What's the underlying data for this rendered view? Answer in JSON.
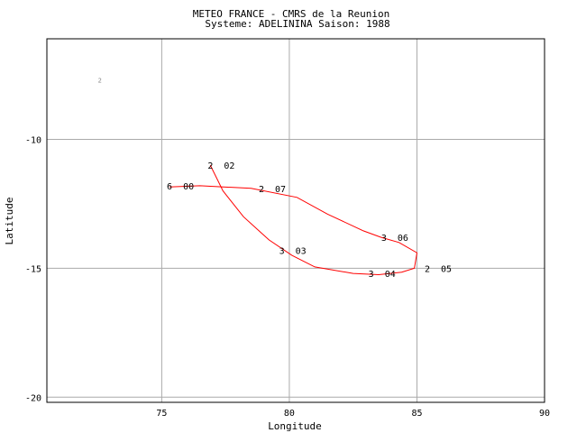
{
  "chart_data": {
    "type": "line",
    "title": "METEO FRANCE - CMRS de la Reunion",
    "subtitle": "Systeme: ADELININA  Saison: 1988",
    "xlabel": "Longitude",
    "ylabel": "Latitude",
    "xlim": [
      70.5,
      90
    ],
    "ylim": [
      -20.2,
      -6.1
    ],
    "xticks": [
      75,
      80,
      85,
      90
    ],
    "yticks": [
      -10,
      -15,
      -20
    ],
    "grid": true,
    "line_color": "#ff0000",
    "series": [
      {
        "x": [
          76.9,
          77.4,
          78.2,
          79.2,
          80.1,
          81.0,
          82.5,
          83.5,
          84.4,
          84.9,
          85.0,
          84.3,
          83.6,
          82.9,
          81.5,
          80.3,
          78.5,
          76.5,
          75.3
        ],
        "y": [
          -11.0,
          -12.0,
          -13.0,
          -13.9,
          -14.5,
          -14.95,
          -15.2,
          -15.25,
          -15.15,
          -15.0,
          -14.4,
          -14.0,
          -13.8,
          -13.55,
          -12.9,
          -12.25,
          -11.9,
          -11.8,
          -11.85
        ]
      }
    ],
    "annotations": [
      {
        "text": "2  02",
        "x": 76.8,
        "y": -11.0
      },
      {
        "text": "6  00",
        "x": 75.2,
        "y": -11.8
      },
      {
        "text": "2  07",
        "x": 78.8,
        "y": -11.9
      },
      {
        "text": "3  03",
        "x": 79.6,
        "y": -14.3
      },
      {
        "text": "3  06",
        "x": 83.6,
        "y": -13.8
      },
      {
        "text": "3  04",
        "x": 83.1,
        "y": -15.2
      },
      {
        "text": "2  05",
        "x": 85.3,
        "y": -15.0
      }
    ],
    "corner_mark": {
      "text": "2",
      "x": 72.5,
      "y": -7.8
    }
  }
}
